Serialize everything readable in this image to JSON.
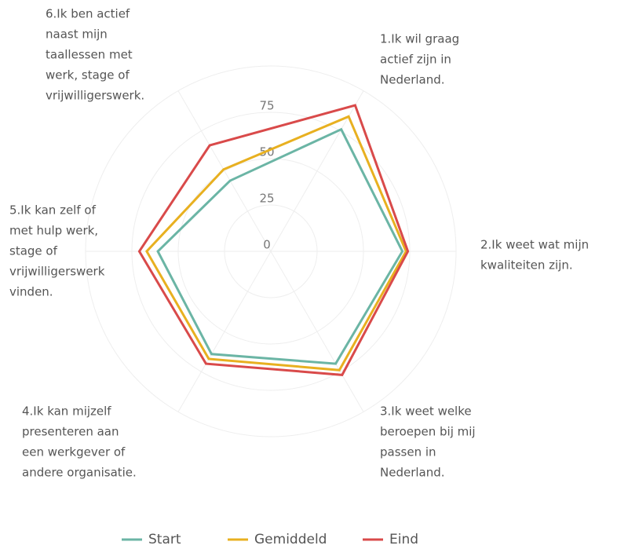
{
  "chart_data": {
    "type": "radar",
    "categories": [
      [
        "1.Ik wil graag",
        "actief zijn in",
        "Nederland."
      ],
      [
        "2.Ik weet wat mijn",
        "kwaliteiten zijn."
      ],
      [
        "3.Ik weet welke",
        "beroepen bij mij",
        "passen in",
        "Nederland."
      ],
      [
        "4.Ik kan mijzelf",
        "presenteren aan",
        "een werkgever of",
        "andere organisatie."
      ],
      [
        "5.Ik kan zelf of",
        "met hulp werk,",
        "stage of",
        "vrijwilligerswerk",
        "vinden."
      ],
      [
        "6.Ik ben actief",
        "naast mijn",
        "taallessen met",
        "werk, stage of",
        "vrijwilligerswerk."
      ]
    ],
    "series": [
      {
        "name": "Start",
        "color": "#6bb5a5",
        "values": [
          76,
          71,
          70,
          64,
          61,
          44
        ]
      },
      {
        "name": "Gemiddeld",
        "color": "#e8b020",
        "values": [
          84,
          73,
          74,
          67,
          67,
          51
        ]
      },
      {
        "name": "Eind",
        "color": "#d94a4a",
        "values": [
          91,
          74,
          77,
          70,
          71,
          66
        ]
      }
    ],
    "ylim": [
      0,
      100
    ],
    "yticks": [
      0,
      25,
      50,
      75
    ],
    "grid": true,
    "legend": "bottom"
  }
}
